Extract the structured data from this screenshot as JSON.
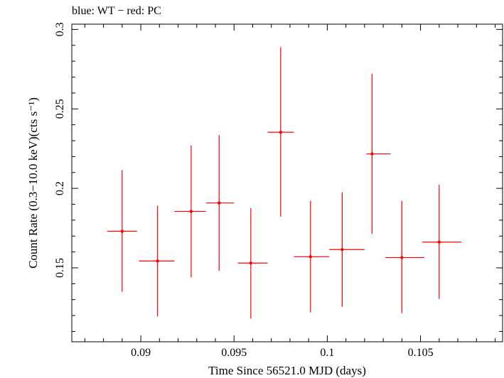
{
  "chart_data": {
    "type": "scatter",
    "title": "blue: WT − red: PC",
    "xlabel": "Time Since 56521.0 MJD (days)",
    "ylabel": "Count Rate (0.3−10.0 keV)(cts s⁻¹)",
    "xlim": [
      0.0863,
      0.1094
    ],
    "ylim": [
      0.1035,
      0.3033
    ],
    "x_ticks": [
      0.09,
      0.095,
      0.1,
      0.105
    ],
    "x_tick_labels": [
      "0.09",
      "0.095",
      "0.1",
      "0.105"
    ],
    "y_ticks": [
      0.15,
      0.2,
      0.25,
      0.3
    ],
    "y_tick_labels": [
      "0.15",
      "0.2",
      "0.25",
      "0.3"
    ],
    "grid": false,
    "series": [
      {
        "color": "#ff0000",
        "points": [
          {
            "x": 0.089,
            "xlo": 0.0882,
            "xhi": 0.0898,
            "y": 0.173,
            "ylo": 0.135,
            "yhi": 0.2115
          },
          {
            "x": 0.0909,
            "xlo": 0.0899,
            "xhi": 0.0918,
            "y": 0.1543,
            "ylo": 0.1195,
            "yhi": 0.1891
          },
          {
            "x": 0.0927,
            "xlo": 0.0918,
            "xhi": 0.0935,
            "y": 0.1855,
            "ylo": 0.144,
            "yhi": 0.227
          },
          {
            "x": 0.0942,
            "xlo": 0.0935,
            "xhi": 0.095,
            "y": 0.1908,
            "ylo": 0.1481,
            "yhi": 0.2335
          },
          {
            "x": 0.0959,
            "xlo": 0.0952,
            "xhi": 0.0968,
            "y": 0.153,
            "ylo": 0.118,
            "yhi": 0.1876
          },
          {
            "x": 0.0975,
            "xlo": 0.0968,
            "xhi": 0.0982,
            "y": 0.2353,
            "ylo": 0.1822,
            "yhi": 0.2888
          },
          {
            "x": 0.0991,
            "xlo": 0.0982,
            "xhi": 0.1001,
            "y": 0.157,
            "ylo": 0.122,
            "yhi": 0.1922
          },
          {
            "x": 0.1008,
            "xlo": 0.1001,
            "xhi": 0.102,
            "y": 0.1615,
            "ylo": 0.1255,
            "yhi": 0.1975
          },
          {
            "x": 0.1024,
            "xlo": 0.1021,
            "xhi": 0.1034,
            "y": 0.2217,
            "ylo": 0.1714,
            "yhi": 0.2721
          },
          {
            "x": 0.104,
            "xlo": 0.1031,
            "xhi": 0.1052,
            "y": 0.1565,
            "ylo": 0.1215,
            "yhi": 0.1921
          },
          {
            "x": 0.106,
            "xlo": 0.1051,
            "xhi": 0.1072,
            "y": 0.1662,
            "ylo": 0.1305,
            "yhi": 0.2022
          }
        ]
      }
    ]
  }
}
